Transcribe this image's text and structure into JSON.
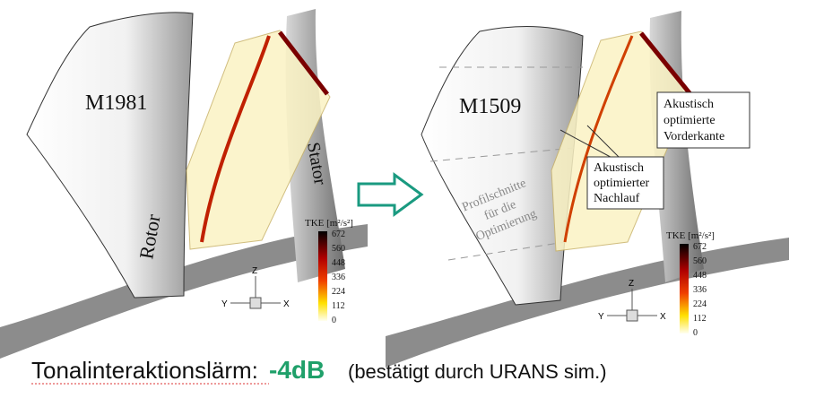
{
  "panels": [
    {
      "label": "M1981",
      "rotor_label": "Rotor",
      "stator_label": "Stator",
      "colorbar": {
        "title": "TKE [m²/s²]",
        "ticks": [
          672,
          560,
          448,
          336,
          224,
          112,
          0
        ]
      },
      "axes": {
        "z": "Z",
        "y": "Y",
        "x": "X"
      }
    },
    {
      "label": "M1509",
      "section_note": [
        "Profilschnitte",
        "für die",
        "Optimierung"
      ],
      "annotations": [
        {
          "lines": [
            "Akustisch",
            "optimierte",
            "Vorderkante"
          ]
        },
        {
          "lines": [
            "Akustisch",
            "optimierter",
            "Nachlauf"
          ]
        }
      ],
      "colorbar": {
        "title": "TKE [m²/s²]",
        "ticks": [
          672,
          560,
          448,
          336,
          224,
          112,
          0
        ]
      },
      "axes": {
        "z": "Z",
        "y": "Y",
        "x": "X"
      }
    }
  ],
  "footer": {
    "label": "Tonalinteraktionslärm:",
    "result": "-4dB",
    "note": "(bestätigt durch URANS sim.)"
  }
}
